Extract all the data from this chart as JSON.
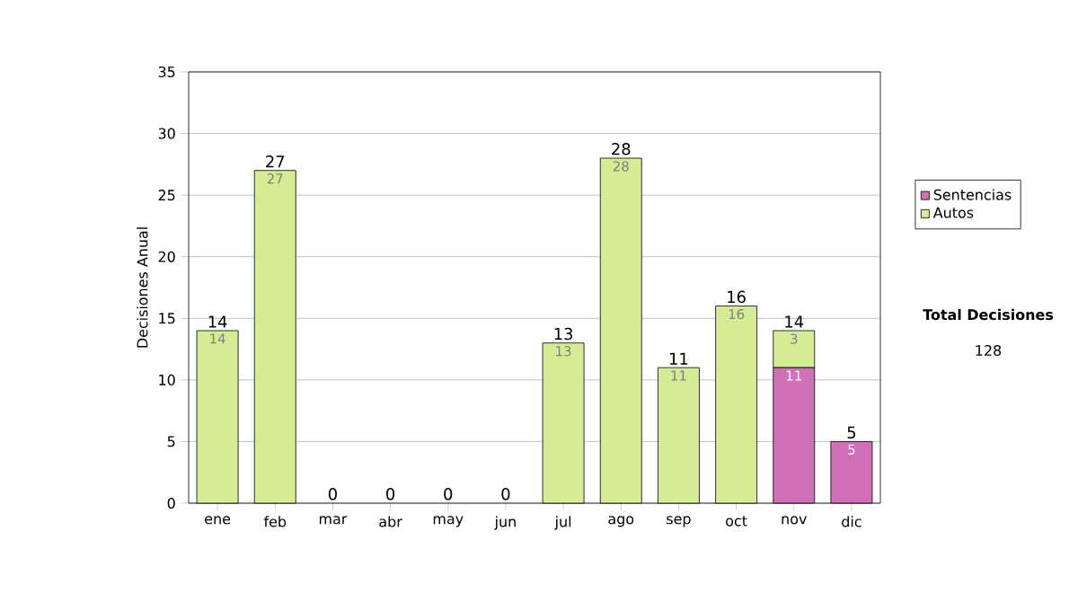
{
  "chart_data": {
    "type": "bar",
    "stacked": true,
    "categories": [
      "ene",
      "feb",
      "mar",
      "abr",
      "may",
      "jun",
      "jul",
      "ago",
      "sep",
      "oct",
      "nov",
      "dic"
    ],
    "ylabel": "Decisiones Anual",
    "series": [
      {
        "name": "Sentencias",
        "color": "#d070b8",
        "values": [
          0,
          0,
          0,
          0,
          0,
          0,
          0,
          0,
          0,
          0,
          11,
          5
        ],
        "value_labels": [
          null,
          null,
          null,
          null,
          null,
          null,
          null,
          null,
          null,
          null,
          "11",
          "5"
        ]
      },
      {
        "name": "Autos",
        "color": "#d4ec94",
        "values": [
          14,
          27,
          0,
          0,
          0,
          0,
          13,
          28,
          11,
          16,
          3,
          0
        ],
        "value_labels": [
          "14",
          "27",
          null,
          null,
          null,
          null,
          "13",
          "28",
          "11",
          "16",
          "3",
          null
        ]
      }
    ],
    "totals": [
      "14",
      "27",
      "0",
      "0",
      "0",
      "0",
      "13",
      "28",
      "11",
      "16",
      "14",
      "5"
    ],
    "ylim": [
      0,
      35
    ],
    "yticks": [
      0,
      5,
      10,
      15,
      20,
      25,
      30,
      35
    ],
    "grid": "y",
    "legend": "right",
    "annotations": [
      "Total Decisiones",
      "128"
    ]
  }
}
